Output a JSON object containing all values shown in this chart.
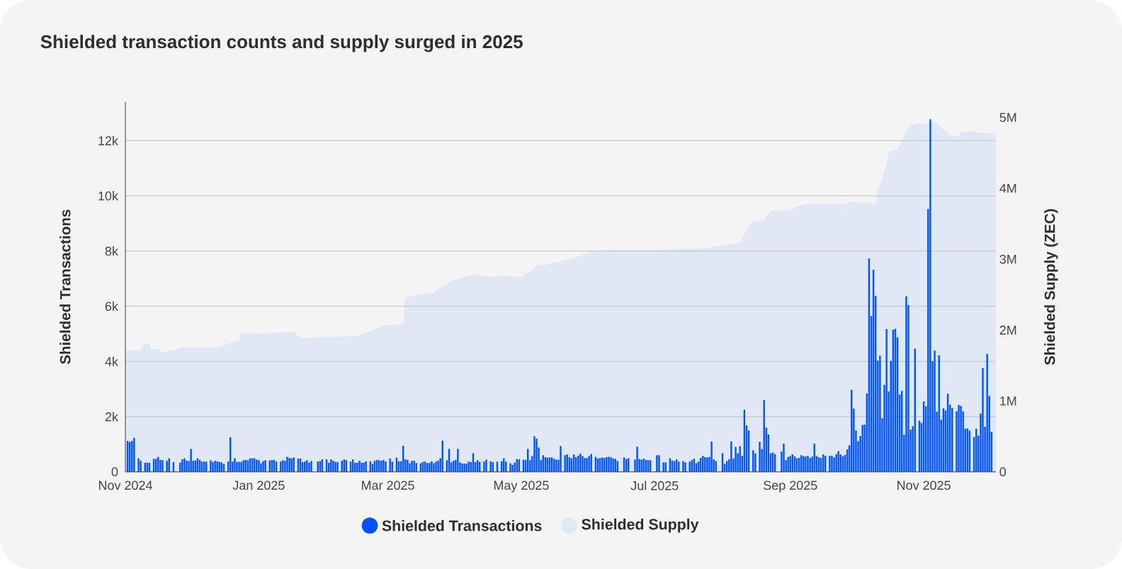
{
  "chart_data": {
    "type": "bar",
    "title": "Shielded transaction counts and supply surged in 2025",
    "ylabel": "Shielded Transactions",
    "y2label": "Shielded Supply (ZEC)",
    "xlim": [
      "2024-11-01",
      "2025-12-04"
    ],
    "xticks": [
      {
        "value": "2024-11-01",
        "label": "Nov 2024"
      },
      {
        "value": "2025-01-01",
        "label": "Jan 2025"
      },
      {
        "value": "2025-03-01",
        "label": "Mar 2025"
      },
      {
        "value": "2025-05-01",
        "label": "May 2025"
      },
      {
        "value": "2025-07-01",
        "label": "Jul 2025"
      },
      {
        "value": "2025-09-01",
        "label": "Sep 2025"
      },
      {
        "value": "2025-11-01",
        "label": "Nov 2025"
      }
    ],
    "ylim": [
      0,
      13400
    ],
    "yticks": [
      0,
      {
        "value": 2000,
        "label": "2k"
      },
      {
        "value": 4000,
        "label": "4k"
      },
      {
        "value": 6000,
        "label": "6k"
      },
      {
        "value": 8000,
        "label": "8k"
      },
      {
        "value": 10000,
        "label": "10k"
      },
      {
        "value": 12000,
        "label": "12k"
      }
    ],
    "y2lim": [
      0,
      5220000
    ],
    "y2ticks": [
      0,
      {
        "value": 1000000,
        "label": "1M"
      },
      {
        "value": 2000000,
        "label": "2M"
      },
      {
        "value": 3000000,
        "label": "3M"
      },
      {
        "value": 4000000,
        "label": "4M"
      },
      {
        "value": 5000000,
        "label": "5M"
      }
    ],
    "grid": "y",
    "legend": "bottom",
    "series": [
      {
        "name": "Shielded Supply",
        "type": "area",
        "axis": "y2",
        "color": "#e1e8f5",
        "x": [
          "2024-11-01",
          "2024-11-08",
          "2024-11-09",
          "2024-11-12",
          "2024-11-13",
          "2024-11-17",
          "2024-11-18",
          "2024-11-23",
          "2024-11-27",
          "2024-12-13",
          "2024-12-23",
          "2024-12-24",
          "2024-12-31",
          "2025-01-17",
          "2025-01-20",
          "2025-01-29",
          "2025-02-15",
          "2025-02-21",
          "2025-02-27",
          "2025-03-08",
          "2025-03-09",
          "2025-03-14",
          "2025-03-22",
          "2025-03-27",
          "2025-03-31",
          "2025-04-05",
          "2025-04-10",
          "2025-04-17",
          "2025-04-20",
          "2025-05-01",
          "2025-05-06",
          "2025-05-09",
          "2025-05-12",
          "2025-05-17",
          "2025-05-24",
          "2025-05-29",
          "2025-06-02",
          "2025-06-10",
          "2025-07-01",
          "2025-07-27",
          "2025-07-30",
          "2025-08-09",
          "2025-08-12",
          "2025-08-15",
          "2025-08-20",
          "2025-08-23",
          "2025-08-31",
          "2025-09-02",
          "2025-09-08",
          "2025-09-26",
          "2025-09-28",
          "2025-10-10",
          "2025-10-11",
          "2025-10-13",
          "2025-10-15",
          "2025-10-16",
          "2025-10-20",
          "2025-10-24",
          "2025-10-26",
          "2025-10-30",
          "2025-11-02",
          "2025-11-05",
          "2025-11-06",
          "2025-11-10",
          "2025-11-13",
          "2025-11-16",
          "2025-11-18",
          "2025-11-23",
          "2025-11-27",
          "2025-12-04"
        ],
        "values": [
          1720000,
          1720000,
          1810000,
          1810000,
          1730000,
          1730000,
          1690000,
          1720000,
          1760000,
          1760000,
          1860000,
          1970000,
          1950000,
          1980000,
          1890000,
          1900000,
          1920000,
          1990000,
          2070000,
          2090000,
          2460000,
          2490000,
          2530000,
          2640000,
          2700000,
          2750000,
          2790000,
          2750000,
          2770000,
          2750000,
          2850000,
          2920000,
          2920000,
          2960000,
          3010000,
          3060000,
          3110000,
          3130000,
          3130000,
          3160000,
          3190000,
          3230000,
          3410000,
          3540000,
          3550000,
          3690000,
          3680000,
          3720000,
          3780000,
          3780000,
          3810000,
          3790000,
          3970000,
          4140000,
          4360000,
          4510000,
          4550000,
          4800000,
          4900000,
          4910000,
          4900000,
          4950000,
          4950000,
          4820000,
          4760000,
          4720000,
          4790000,
          4810000,
          4780000,
          4780000
        ]
      },
      {
        "name": "Shielded Transactions",
        "color": "#0052ff",
        "x": [
          "2024-11-02",
          "2024-11-03",
          "2024-11-04",
          "2024-11-05",
          "2024-11-07",
          "2024-11-08",
          "2024-11-10",
          "2024-11-11",
          "2024-11-12",
          "2024-11-14",
          "2024-11-15",
          "2024-11-16",
          "2024-11-17",
          "2024-11-18",
          "2024-11-20",
          "2024-11-21",
          "2024-11-23",
          "2024-11-26",
          "2024-11-27",
          "2024-11-28",
          "2024-11-29",
          "2024-11-30",
          "2024-12-01",
          "2024-12-02",
          "2024-12-03",
          "2024-12-04",
          "2024-12-05",
          "2024-12-06",
          "2024-12-07",
          "2024-12-08",
          "2024-12-10",
          "2024-12-11",
          "2024-12-12",
          "2024-12-13",
          "2024-12-14",
          "2024-12-15",
          "2024-12-16",
          "2024-12-18",
          "2024-12-19",
          "2024-12-20",
          "2024-12-21",
          "2024-12-22",
          "2024-12-23",
          "2024-12-24",
          "2024-12-25",
          "2024-12-26",
          "2024-12-27",
          "2024-12-28",
          "2024-12-29",
          "2024-12-30",
          "2024-12-31",
          "2025-01-01",
          "2025-01-02",
          "2025-01-03",
          "2025-01-04",
          "2025-01-06",
          "2025-01-07",
          "2025-01-08",
          "2025-01-09",
          "2025-01-11",
          "2025-01-12",
          "2025-01-13",
          "2025-01-14",
          "2025-01-15",
          "2025-01-16",
          "2025-01-17",
          "2025-01-19",
          "2025-01-20",
          "2025-01-21",
          "2025-01-22",
          "2025-01-23",
          "2025-01-24",
          "2025-01-25",
          "2025-01-28",
          "2025-01-29",
          "2025-01-30",
          "2025-02-01",
          "2025-02-02",
          "2025-02-03",
          "2025-02-04",
          "2025-02-05",
          "2025-02-06",
          "2025-02-08",
          "2025-02-09",
          "2025-02-10",
          "2025-02-12",
          "2025-02-13",
          "2025-02-14",
          "2025-02-15",
          "2025-02-16",
          "2025-02-17",
          "2025-02-18",
          "2025-02-19",
          "2025-02-21",
          "2025-02-22",
          "2025-02-23",
          "2025-02-24",
          "2025-02-25",
          "2025-02-26",
          "2025-02-27",
          "2025-02-28",
          "2025-03-02",
          "2025-03-03",
          "2025-03-05",
          "2025-03-06",
          "2025-03-07",
          "2025-03-08",
          "2025-03-09",
          "2025-03-10",
          "2025-03-11",
          "2025-03-12",
          "2025-03-13",
          "2025-03-14",
          "2025-03-16",
          "2025-03-17",
          "2025-03-18",
          "2025-03-19",
          "2025-03-20",
          "2025-03-21",
          "2025-03-22",
          "2025-03-23",
          "2025-03-24",
          "2025-03-25",
          "2025-03-26",
          "2025-03-28",
          "2025-03-29",
          "2025-03-30",
          "2025-03-31",
          "2025-04-01",
          "2025-04-02",
          "2025-04-03",
          "2025-04-04",
          "2025-04-05",
          "2025-04-06",
          "2025-04-07",
          "2025-04-08",
          "2025-04-09",
          "2025-04-10",
          "2025-04-11",
          "2025-04-12",
          "2025-04-14",
          "2025-04-15",
          "2025-04-17",
          "2025-04-18",
          "2025-04-20",
          "2025-04-22",
          "2025-04-23",
          "2025-04-24",
          "2025-04-26",
          "2025-04-27",
          "2025-04-28",
          "2025-04-29",
          "2025-04-30",
          "2025-05-02",
          "2025-05-03",
          "2025-05-04",
          "2025-05-05",
          "2025-05-06",
          "2025-05-07",
          "2025-05-08",
          "2025-05-09",
          "2025-05-10",
          "2025-05-11",
          "2025-05-12",
          "2025-05-13",
          "2025-05-14",
          "2025-05-15",
          "2025-05-16",
          "2025-05-17",
          "2025-05-18",
          "2025-05-19",
          "2025-05-21",
          "2025-05-22",
          "2025-05-23",
          "2025-05-24",
          "2025-05-25",
          "2025-05-26",
          "2025-05-27",
          "2025-05-28",
          "2025-05-29",
          "2025-05-30",
          "2025-05-31",
          "2025-06-01",
          "2025-06-02",
          "2025-06-04",
          "2025-06-05",
          "2025-06-06",
          "2025-06-07",
          "2025-06-08",
          "2025-06-09",
          "2025-06-10",
          "2025-06-11",
          "2025-06-12",
          "2025-06-13",
          "2025-06-14",
          "2025-06-17",
          "2025-06-18",
          "2025-06-19",
          "2025-06-22",
          "2025-06-23",
          "2025-06-24",
          "2025-06-25",
          "2025-06-26",
          "2025-06-27",
          "2025-06-28",
          "2025-06-29",
          "2025-07-02",
          "2025-07-03",
          "2025-07-05",
          "2025-07-06",
          "2025-07-08",
          "2025-07-09",
          "2025-07-10",
          "2025-07-11",
          "2025-07-12",
          "2025-07-14",
          "2025-07-15",
          "2025-07-17",
          "2025-07-18",
          "2025-07-19",
          "2025-07-20",
          "2025-07-21",
          "2025-07-22",
          "2025-07-23",
          "2025-07-24",
          "2025-07-25",
          "2025-07-26",
          "2025-07-27",
          "2025-07-28",
          "2025-07-29",
          "2025-08-01",
          "2025-08-02",
          "2025-08-03",
          "2025-08-04",
          "2025-08-05",
          "2025-08-06",
          "2025-08-07",
          "2025-08-08",
          "2025-08-09",
          "2025-08-10",
          "2025-08-11",
          "2025-08-12",
          "2025-08-13",
          "2025-08-15",
          "2025-08-16",
          "2025-08-18",
          "2025-08-19",
          "2025-08-20",
          "2025-08-21",
          "2025-08-22",
          "2025-08-23",
          "2025-08-24",
          "2025-08-25",
          "2025-08-28",
          "2025-08-29",
          "2025-08-30",
          "2025-08-31",
          "2025-09-01",
          "2025-09-02",
          "2025-09-03",
          "2025-09-04",
          "2025-09-05",
          "2025-09-06",
          "2025-09-07",
          "2025-09-08",
          "2025-09-09",
          "2025-09-10",
          "2025-09-11",
          "2025-09-12",
          "2025-09-13",
          "2025-09-14",
          "2025-09-15",
          "2025-09-16",
          "2025-09-17",
          "2025-09-19",
          "2025-09-20",
          "2025-09-21",
          "2025-09-22",
          "2025-09-23",
          "2025-09-24",
          "2025-09-25",
          "2025-09-26",
          "2025-09-27",
          "2025-09-28",
          "2025-09-29",
          "2025-09-30",
          "2025-10-01",
          "2025-10-02",
          "2025-10-03",
          "2025-10-04",
          "2025-10-05",
          "2025-10-06",
          "2025-10-07",
          "2025-10-08",
          "2025-10-09",
          "2025-10-10",
          "2025-10-11",
          "2025-10-12",
          "2025-10-13",
          "2025-10-14",
          "2025-10-15",
          "2025-10-16",
          "2025-10-17",
          "2025-10-18",
          "2025-10-19",
          "2025-10-20",
          "2025-10-21",
          "2025-10-22",
          "2025-10-23",
          "2025-10-24",
          "2025-10-25",
          "2025-10-26",
          "2025-10-27",
          "2025-10-28",
          "2025-10-30",
          "2025-10-31",
          "2025-11-01",
          "2025-11-02",
          "2025-11-03",
          "2025-11-04",
          "2025-11-05",
          "2025-11-06",
          "2025-11-07",
          "2025-11-08",
          "2025-11-09",
          "2025-11-10",
          "2025-11-11",
          "2025-11-12",
          "2025-11-13",
          "2025-11-14",
          "2025-11-16",
          "2025-11-17",
          "2025-11-18",
          "2025-11-19",
          "2025-11-20",
          "2025-11-21",
          "2025-11-22",
          "2025-11-24",
          "2025-11-25",
          "2025-11-26",
          "2025-11-27",
          "2025-11-28",
          "2025-11-29",
          "2025-11-30",
          "2025-12-01",
          "2025-12-02"
        ],
        "values": [
          1120,
          1080,
          1120,
          1230,
          490,
          400,
          330,
          330,
          330,
          470,
          470,
          540,
          430,
          420,
          400,
          490,
          350,
          330,
          450,
          490,
          410,
          390,
          830,
          400,
          410,
          490,
          430,
          370,
          370,
          370,
          420,
          350,
          400,
          370,
          360,
          340,
          280,
          370,
          1250,
          370,
          490,
          360,
          360,
          360,
          420,
          430,
          420,
          490,
          490,
          490,
          440,
          420,
          310,
          390,
          420,
          410,
          430,
          430,
          370,
          370,
          420,
          400,
          540,
          500,
          490,
          520,
          480,
          480,
          350,
          370,
          420,
          330,
          390,
          370,
          390,
          450,
          450,
          330,
          450,
          400,
          360,
          350,
          400,
          450,
          420,
          370,
          450,
          330,
          330,
          400,
          330,
          330,
          380,
          380,
          290,
          400,
          430,
          420,
          400,
          430,
          370,
          480,
          370,
          510,
          380,
          380,
          940,
          450,
          430,
          310,
          400,
          400,
          320,
          310,
          360,
          370,
          320,
          320,
          380,
          310,
          370,
          400,
          490,
          1130,
          420,
          830,
          340,
          400,
          430,
          830,
          340,
          300,
          300,
          300,
          370,
          350,
          670,
          350,
          420,
          360,
          370,
          440,
          380,
          350,
          370,
          380,
          490,
          370,
          310,
          250,
          330,
          460,
          450,
          440,
          430,
          830,
          420,
          570,
          1290,
          1200,
          880,
          430,
          600,
          530,
          510,
          520,
          520,
          470,
          440,
          440,
          930,
          600,
          630,
          530,
          490,
          630,
          530,
          580,
          660,
          570,
          500,
          500,
          570,
          650,
          540,
          480,
          500,
          520,
          500,
          530,
          540,
          530,
          480,
          470,
          390,
          520,
          460,
          490,
          440,
          910,
          460,
          440,
          480,
          430,
          420,
          420,
          600,
          600,
          340,
          340,
          490,
          410,
          390,
          450,
          370,
          390,
          340,
          370,
          420,
          470,
          310,
          370,
          500,
          580,
          530,
          520,
          540,
          1100,
          450,
          390,
          670,
          290,
          390,
          450,
          1100,
          480,
          900,
          670,
          930,
          580,
          2250,
          1680,
          1500,
          780,
          670,
          1090,
          820,
          2600,
          1600,
          1350,
          670,
          700,
          640,
          730,
          1020,
          430,
          540,
          570,
          630,
          560,
          490,
          500,
          600,
          570,
          550,
          580,
          500,
          550,
          1020,
          570,
          530,
          500,
          630,
          580,
          580,
          580,
          520,
          640,
          750,
          630,
          560,
          610,
          810,
          960,
          2970,
          2290,
          1500,
          1110,
          1300,
          1700,
          1710,
          2840,
          7730,
          5640,
          7320,
          6370,
          4030,
          4210,
          1940,
          3150,
          5170,
          2910,
          4020,
          5150,
          5180,
          4870,
          2800,
          2930,
          1340,
          6360,
          6040,
          1530,
          1650,
          4460,
          1850,
          1770,
          2550,
          2370,
          9520,
          12770,
          4010,
          4390,
          2180,
          4220,
          1890,
          2300,
          2220,
          2830,
          2430,
          2310,
          2190,
          2420,
          2390,
          2190,
          1560,
          1570,
          1490,
          1260,
          1560,
          1310,
          2110,
          3760,
          1630,
          4270,
          2750,
          1450
        ]
      }
    ]
  }
}
